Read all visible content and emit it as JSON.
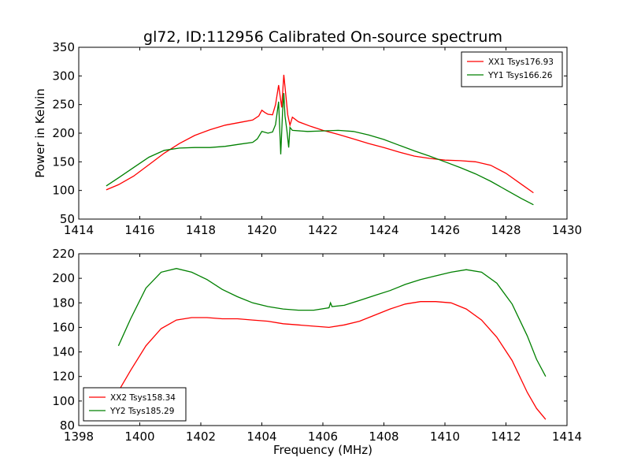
{
  "title": "gl72, ID:112956 Calibrated On-source spectrum",
  "chart_data": [
    {
      "type": "line",
      "title": "gl72, ID:112956 Calibrated On-source spectrum",
      "ylabel": "Power in Kelvin",
      "xlabel": "",
      "xlim": [
        1414,
        1430
      ],
      "ylim": [
        50,
        350
      ],
      "xticks": [
        "1414",
        "1416",
        "1418",
        "1420",
        "1422",
        "1424",
        "1426",
        "1428",
        "1430"
      ],
      "yticks": [
        "50",
        "100",
        "150",
        "200",
        "250",
        "300",
        "350"
      ],
      "legend_position": "top-right",
      "grid": false,
      "series": [
        {
          "name": "XX1 Tsys176.93",
          "color": "#ff0000",
          "points": [
            [
              1414.9,
              101
            ],
            [
              1415.3,
              110
            ],
            [
              1415.8,
              125
            ],
            [
              1416.3,
              145
            ],
            [
              1416.8,
              165
            ],
            [
              1417.3,
              182
            ],
            [
              1417.8,
              196
            ],
            [
              1418.3,
              206
            ],
            [
              1418.8,
              214
            ],
            [
              1419.3,
              219
            ],
            [
              1419.7,
              223
            ],
            [
              1419.9,
              230
            ],
            [
              1420.0,
              240
            ],
            [
              1420.1,
              236
            ],
            [
              1420.2,
              233
            ],
            [
              1420.35,
              232
            ],
            [
              1420.45,
              250
            ],
            [
              1420.55,
              284
            ],
            [
              1420.6,
              265
            ],
            [
              1420.65,
              245
            ],
            [
              1420.72,
              302
            ],
            [
              1420.78,
              270
            ],
            [
              1420.85,
              232
            ],
            [
              1420.92,
              214
            ],
            [
              1421.0,
              228
            ],
            [
              1421.2,
              220
            ],
            [
              1421.6,
              212
            ],
            [
              1422.0,
              205
            ],
            [
              1422.5,
              198
            ],
            [
              1423.0,
              190
            ],
            [
              1423.5,
              182
            ],
            [
              1424.0,
              175
            ],
            [
              1424.5,
              167
            ],
            [
              1425.0,
              160
            ],
            [
              1425.5,
              156
            ],
            [
              1426.0,
              153
            ],
            [
              1426.5,
              152
            ],
            [
              1427.0,
              150
            ],
            [
              1427.5,
              144
            ],
            [
              1428.0,
              130
            ],
            [
              1428.5,
              111
            ],
            [
              1428.9,
              96
            ]
          ]
        },
        {
          "name": "YY1 Tsys166.26",
          "color": "#008000",
          "points": [
            [
              1414.9,
              108
            ],
            [
              1415.3,
              122
            ],
            [
              1415.8,
              140
            ],
            [
              1416.3,
              158
            ],
            [
              1416.8,
              170
            ],
            [
              1417.3,
              174
            ],
            [
              1417.8,
              175
            ],
            [
              1418.3,
              175
            ],
            [
              1418.8,
              177
            ],
            [
              1419.3,
              181
            ],
            [
              1419.7,
              184
            ],
            [
              1419.85,
              190
            ],
            [
              1420.0,
              203
            ],
            [
              1420.2,
              200
            ],
            [
              1420.35,
              202
            ],
            [
              1420.45,
              215
            ],
            [
              1420.55,
              255
            ],
            [
              1420.62,
              163
            ],
            [
              1420.68,
              240
            ],
            [
              1420.72,
              270
            ],
            [
              1420.76,
              230
            ],
            [
              1420.82,
              205
            ],
            [
              1420.88,
              175
            ],
            [
              1420.92,
              210
            ],
            [
              1421.0,
              205
            ],
            [
              1421.5,
              203
            ],
            [
              1422.0,
              204
            ],
            [
              1422.5,
              205
            ],
            [
              1423.0,
              203
            ],
            [
              1423.5,
              197
            ],
            [
              1424.0,
              189
            ],
            [
              1424.5,
              179
            ],
            [
              1425.0,
              169
            ],
            [
              1425.5,
              160
            ],
            [
              1426.0,
              150
            ],
            [
              1426.5,
              140
            ],
            [
              1427.0,
              129
            ],
            [
              1427.5,
              116
            ],
            [
              1428.0,
              101
            ],
            [
              1428.5,
              86
            ],
            [
              1428.9,
              75
            ]
          ]
        }
      ]
    },
    {
      "type": "line",
      "title": "",
      "xlabel": "Frequency (MHz)",
      "ylabel": "",
      "xlim": [
        1398,
        1414
      ],
      "ylim": [
        80,
        220
      ],
      "xticks": [
        "1398",
        "1400",
        "1402",
        "1404",
        "1406",
        "1408",
        "1410",
        "1412",
        "1414"
      ],
      "yticks": [
        "80",
        "100",
        "120",
        "140",
        "160",
        "180",
        "200",
        "220"
      ],
      "legend_position": "bottom-left",
      "grid": false,
      "series": [
        {
          "name": "XX2 Tsys158.34",
          "color": "#ff0000",
          "points": [
            [
              1399.3,
              108
            ],
            [
              1399.7,
              125
            ],
            [
              1400.2,
              145
            ],
            [
              1400.7,
              159
            ],
            [
              1401.2,
              166
            ],
            [
              1401.7,
              168
            ],
            [
              1402.2,
              168
            ],
            [
              1402.7,
              167
            ],
            [
              1403.2,
              167
            ],
            [
              1403.7,
              166
            ],
            [
              1404.2,
              165
            ],
            [
              1404.7,
              163
            ],
            [
              1405.2,
              162
            ],
            [
              1405.7,
              161
            ],
            [
              1406.2,
              160
            ],
            [
              1406.7,
              162
            ],
            [
              1407.2,
              165
            ],
            [
              1407.7,
              170
            ],
            [
              1408.2,
              175
            ],
            [
              1408.7,
              179
            ],
            [
              1409.2,
              181
            ],
            [
              1409.7,
              181
            ],
            [
              1410.2,
              180
            ],
            [
              1410.7,
              175
            ],
            [
              1411.2,
              166
            ],
            [
              1411.7,
              152
            ],
            [
              1412.2,
              133
            ],
            [
              1412.7,
              107
            ],
            [
              1413.0,
              94
            ],
            [
              1413.3,
              85
            ]
          ]
        },
        {
          "name": "YY2 Tsys185.29",
          "color": "#008000",
          "points": [
            [
              1399.3,
              145
            ],
            [
              1399.7,
              167
            ],
            [
              1400.2,
              192
            ],
            [
              1400.7,
              205
            ],
            [
              1401.2,
              208
            ],
            [
              1401.7,
              205
            ],
            [
              1402.2,
              199
            ],
            [
              1402.7,
              191
            ],
            [
              1403.2,
              185
            ],
            [
              1403.7,
              180
            ],
            [
              1404.2,
              177
            ],
            [
              1404.7,
              175
            ],
            [
              1405.2,
              174
            ],
            [
              1405.7,
              174
            ],
            [
              1406.2,
              176
            ],
            [
              1406.25,
              180
            ],
            [
              1406.3,
              177
            ],
            [
              1406.7,
              178
            ],
            [
              1407.2,
              182
            ],
            [
              1407.7,
              186
            ],
            [
              1408.2,
              190
            ],
            [
              1408.7,
              195
            ],
            [
              1409.2,
              199
            ],
            [
              1409.7,
              202
            ],
            [
              1410.2,
              205
            ],
            [
              1410.7,
              207
            ],
            [
              1411.2,
              205
            ],
            [
              1411.7,
              196
            ],
            [
              1412.2,
              179
            ],
            [
              1412.7,
              153
            ],
            [
              1413.0,
              134
            ],
            [
              1413.3,
              120
            ]
          ]
        }
      ]
    }
  ]
}
